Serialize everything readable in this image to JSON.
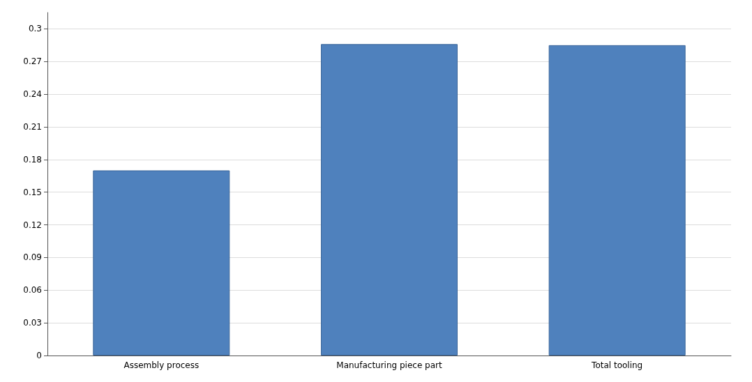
{
  "chart_data": {
    "type": "bar",
    "categories": [
      "Assembly process",
      "Manufacturing piece part",
      "Total tooling"
    ],
    "values": [
      0.17,
      0.286,
      0.285
    ],
    "color": "#4f81bd",
    "ylim": [
      0,
      0.315
    ],
    "yticks": [
      0,
      0.03,
      0.06,
      0.09,
      0.12,
      0.15,
      0.18,
      0.21,
      0.24,
      0.27,
      0.3
    ],
    "grid": "y"
  }
}
